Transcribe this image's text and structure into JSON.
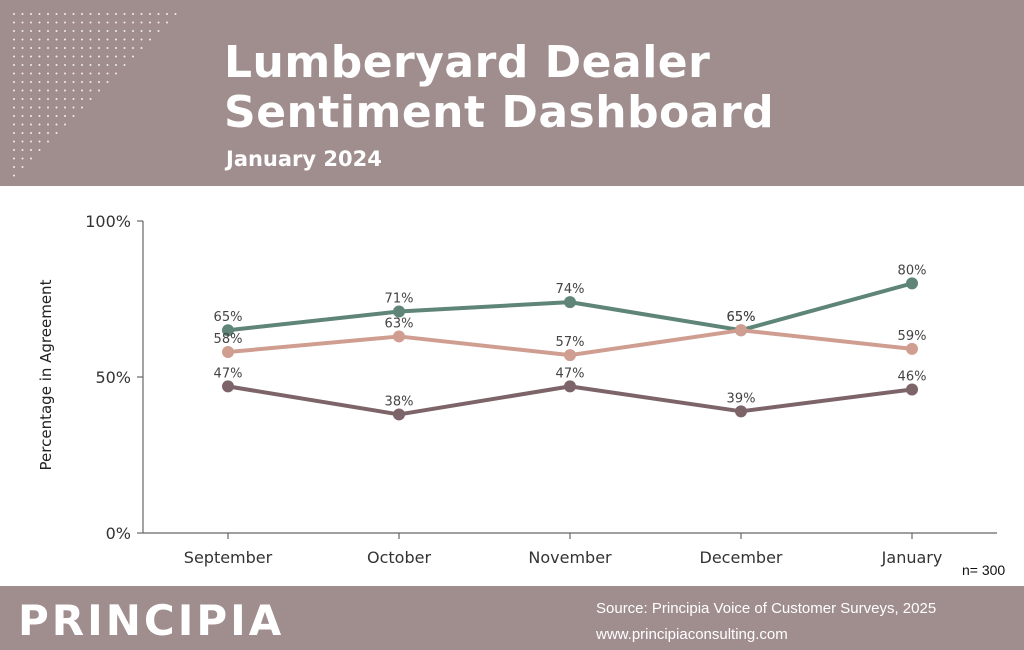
{
  "header": {
    "title_line1": "Lumberyard Dealer",
    "title_line2": "Sentiment Dashboard",
    "subtitle": "January 2024",
    "background": "#a08d8e"
  },
  "chart_data": {
    "type": "line",
    "categories": [
      "September",
      "October",
      "November",
      "December",
      "January"
    ],
    "ylabel": "Percentage in Agreement",
    "ylim": [
      0,
      100
    ],
    "yticks": [
      "0%",
      "50%",
      "100%"
    ],
    "grid": false,
    "legend": "none",
    "series": [
      {
        "values": [
          65,
          71,
          74,
          65,
          80
        ],
        "labels": [
          "65%",
          "71%",
          "74%",
          "65%",
          "80%"
        ],
        "color": "#5f8478"
      },
      {
        "values": [
          58,
          63,
          57,
          65,
          59
        ],
        "labels": [
          "58%",
          "63%",
          "57%",
          "65%",
          "59%"
        ],
        "color": "#d09e91"
      },
      {
        "values": [
          47,
          38,
          47,
          39,
          46
        ],
        "labels": [
          "47%",
          "38%",
          "47%",
          "39%",
          "46%"
        ],
        "color": "#7c6469"
      }
    ]
  },
  "sample_size": "n= 300",
  "footer": {
    "brand": "PRINCIPIA",
    "source": "Source: Principia Voice of Customer Surveys, 2025",
    "url": "www.principiaconsulting.com"
  }
}
